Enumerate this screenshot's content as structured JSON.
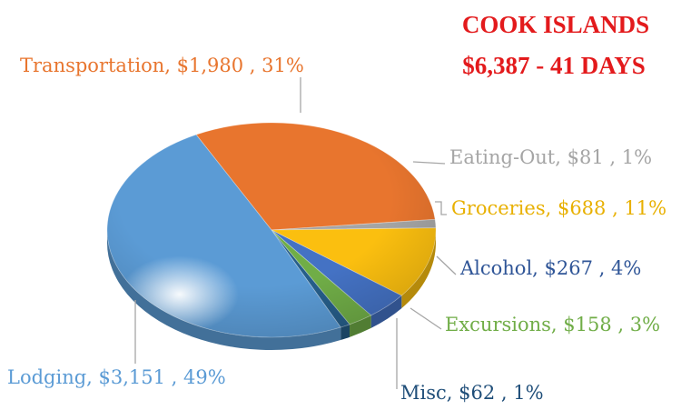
{
  "title": {
    "line1": "COOK ISLANDS",
    "line2": "$6,387  -  41 DAYS",
    "color": "#e31a1c"
  },
  "chart_data": {
    "type": "pie",
    "title": "COOK ISLANDS",
    "subtitle": "$6,387  -  41 DAYS",
    "slices": [
      {
        "name": "Transportation",
        "value": 1980,
        "percent": 31,
        "value_text": "$1,980",
        "percent_text": "31%",
        "color": "#e8752e"
      },
      {
        "name": "Eating-Out",
        "value": 81,
        "percent": 1,
        "value_text": "$81",
        "percent_text": "1%",
        "color": "#a5a5a5"
      },
      {
        "name": "Groceries",
        "value": 688,
        "percent": 11,
        "value_text": "$688",
        "percent_text": "11%",
        "color": "#fbbf0f"
      },
      {
        "name": "Alcohol",
        "value": 267,
        "percent": 4,
        "value_text": "$267",
        "percent_text": "4%",
        "color": "#4472c4"
      },
      {
        "name": "Excursions",
        "value": 158,
        "percent": 3,
        "value_text": "$158",
        "percent_text": "3%",
        "color": "#70ad47"
      },
      {
        "name": "Misc",
        "value": 62,
        "percent": 1,
        "value_text": "$62",
        "percent_text": "1%",
        "color": "#265e8a"
      },
      {
        "name": "Lodging",
        "value": 3151,
        "percent": 49,
        "value_text": "$3,151",
        "percent_text": "49%",
        "color": "#5b9bd5"
      }
    ],
    "label_colors": {
      "Transportation": "#e8752e",
      "Eating-Out": "#a5a5a5",
      "Groceries": "#e8b000",
      "Alcohol": "#2f5597",
      "Excursions": "#70ad47",
      "Misc": "#1f4e79",
      "Lodging": "#5b9bd5"
    }
  }
}
